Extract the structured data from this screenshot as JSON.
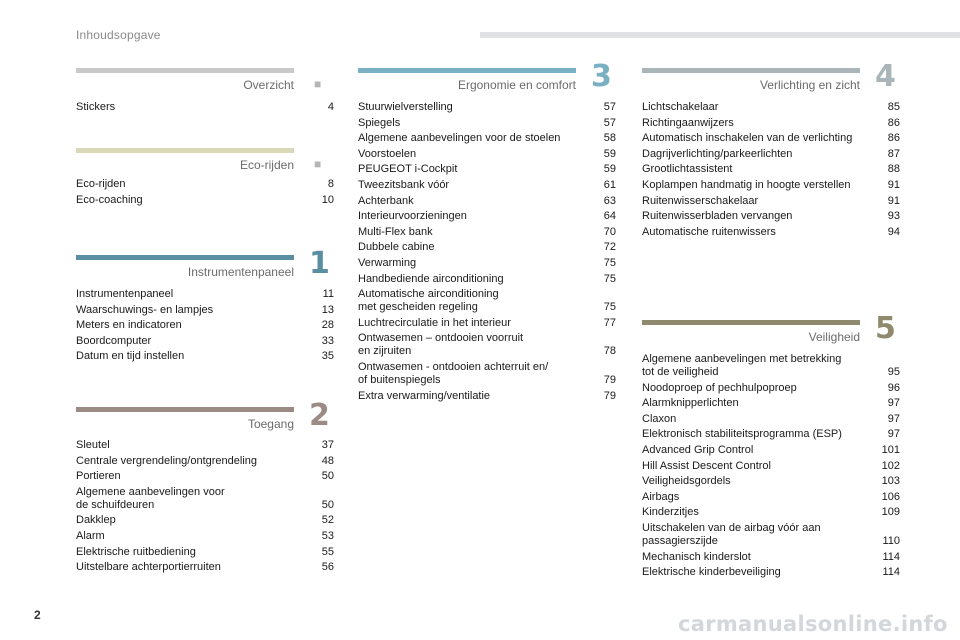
{
  "header": {
    "title": "Inhoudsopgave"
  },
  "page_number": "2",
  "watermark": "carmanualsonline.info",
  "sections": {
    "overzicht": {
      "title": "Overzicht",
      "color": "#c9c9c9",
      "entries": [
        {
          "label": "Stickers",
          "page": "4"
        }
      ]
    },
    "eco": {
      "title": "Eco-rijden",
      "color": "#d9d8b9",
      "entries": [
        {
          "label": "Eco-rijden",
          "page": "8"
        },
        {
          "label": "Eco-coaching",
          "page": "10"
        }
      ]
    },
    "s1": {
      "number": "1",
      "title": "Instrumentenpaneel",
      "color": "#5a8fa3",
      "entries": [
        {
          "label": "Instrumentenpaneel",
          "page": "11"
        },
        {
          "label": "Waarschuwings- en lampjes",
          "page": "13"
        },
        {
          "label": "Meters en indicatoren",
          "page": "28"
        },
        {
          "label": "Boordcomputer",
          "page": "33"
        },
        {
          "label": "Datum en tijd instellen",
          "page": "35"
        }
      ]
    },
    "s2": {
      "number": "2",
      "title": "Toegang",
      "color": "#9c8a84",
      "entries": [
        {
          "label": "Sleutel",
          "page": "37"
        },
        {
          "label": "Centrale vergrendeling/ontgrendeling",
          "page": "48"
        },
        {
          "label": "Portieren",
          "page": "50"
        },
        {
          "label": "Algemene aanbevelingen voor\nde schuifdeuren",
          "page": "50"
        },
        {
          "label": "Dakklep",
          "page": "52"
        },
        {
          "label": "Alarm",
          "page": "53"
        },
        {
          "label": "Elektrische ruitbediening",
          "page": "55"
        },
        {
          "label": "Uitstelbare achterportierruiten",
          "page": "56"
        }
      ]
    },
    "s3": {
      "number": "3",
      "title": "Ergonomie en comfort",
      "color": "#7ab0c4",
      "entries": [
        {
          "label": "Stuurwielverstelling",
          "page": "57"
        },
        {
          "label": "Spiegels",
          "page": "57"
        },
        {
          "label": "Algemene aanbevelingen voor de stoelen",
          "page": "58"
        },
        {
          "label": "Voorstoelen",
          "page": "59"
        },
        {
          "label": "PEUGEOT i-Cockpit",
          "page": "59"
        },
        {
          "label": "Tweezitsbank vóór",
          "page": "61"
        },
        {
          "label": "Achterbank",
          "page": "63"
        },
        {
          "label": "Interieurvoorzieningen",
          "page": "64"
        },
        {
          "label": "Multi-Flex bank",
          "page": "70"
        },
        {
          "label": "Dubbele cabine",
          "page": "72"
        },
        {
          "label": "Verwarming",
          "page": "75"
        },
        {
          "label": "Handbediende airconditioning",
          "page": "75"
        },
        {
          "label": "Automatische airconditioning\nmet gescheiden regeling",
          "page": "75"
        },
        {
          "label": "Luchtrecirculatie in het interieur",
          "page": "77"
        },
        {
          "label": "Ontwasemen – ontdooien voorruit\nen zijruiten",
          "page": "78"
        },
        {
          "label": "Ontwasemen - ontdooien achterruit en/\nof buitenspiegels",
          "page": "79"
        },
        {
          "label": "Extra verwarming/ventilatie",
          "page": "79"
        }
      ]
    },
    "s4": {
      "number": "4",
      "title": "Verlichting en zicht",
      "color": "#a9b5b9",
      "entries": [
        {
          "label": "Lichtschakelaar",
          "page": "85"
        },
        {
          "label": "Richtingaanwijzers",
          "page": "86"
        },
        {
          "label": "Automatisch inschakelen van de verlichting",
          "page": "86"
        },
        {
          "label": "Dagrijverlichting/parkeerlichten",
          "page": "87"
        },
        {
          "label": "Grootlichtassistent",
          "page": "88"
        },
        {
          "label": "Koplampen handmatig in hoogte verstellen",
          "page": "91"
        },
        {
          "label": "Ruitenwisserschakelaar",
          "page": "91"
        },
        {
          "label": "Ruitenwisserbladen vervangen",
          "page": "93"
        },
        {
          "label": "Automatische ruitenwissers",
          "page": "94"
        }
      ]
    },
    "s5": {
      "number": "5",
      "title": "Veiligheid",
      "color": "#8f8a6e",
      "entries": [
        {
          "label": "Algemene aanbevelingen met betrekking\ntot de veiligheid",
          "page": "95"
        },
        {
          "label": "Noodoproep of pechhulpoproep",
          "page": "96"
        },
        {
          "label": "Alarmknipperlichten",
          "page": "97"
        },
        {
          "label": "Claxon",
          "page": "97"
        },
        {
          "label": "Elektronisch stabiliteitsprogramma (ESP)",
          "page": "97"
        },
        {
          "label": "Advanced Grip Control",
          "page": "101"
        },
        {
          "label": "Hill Assist Descent Control",
          "page": "102"
        },
        {
          "label": "Veiligheidsgordels",
          "page": "103"
        },
        {
          "label": "Airbags",
          "page": "106"
        },
        {
          "label": "Kinderzitjes",
          "page": "109"
        },
        {
          "label": "Uitschakelen van de airbag vóór aan\npassagierszijde",
          "page": "110"
        },
        {
          "label": "Mechanisch kinderslot",
          "page": "114"
        },
        {
          "label": "Elektrische kinderbeveiliging",
          "page": "114"
        }
      ]
    }
  }
}
